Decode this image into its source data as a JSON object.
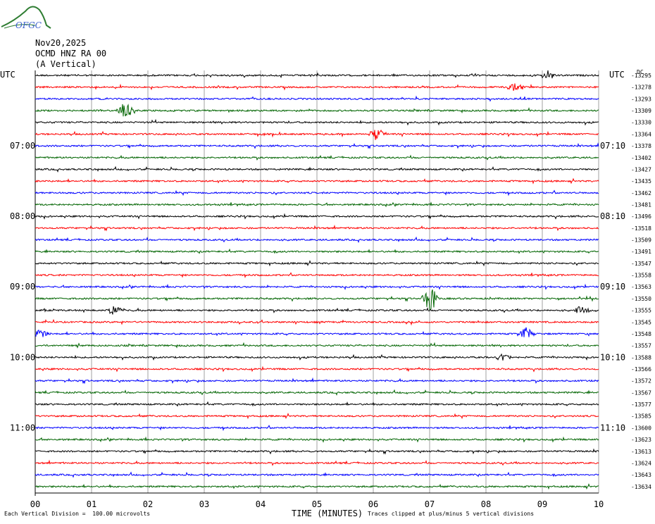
{
  "logo": {
    "text": "OFGC",
    "color": "#2e7d32",
    "text_color": "#3a5fcd"
  },
  "header": {
    "date": "Nov20,2025",
    "station": "OCMD HNZ RA 00",
    "component": "(A Vertical)"
  },
  "chart_data": {
    "type": "line",
    "title": "",
    "left_axis_label": "UTC",
    "right_axis_label": "UTC",
    "right_top_label": "DC",
    "xlabel": "TIME (MINUTES)",
    "x_ticks": [
      "00",
      "01",
      "02",
      "03",
      "04",
      "05",
      "06",
      "07",
      "08",
      "09",
      "10"
    ],
    "xlim": [
      0,
      10
    ],
    "left_hour_labels": [
      {
        "trace": 6,
        "label": "07:00"
      },
      {
        "trace": 12,
        "label": "08:00"
      },
      {
        "trace": 18,
        "label": "09:00"
      },
      {
        "trace": 24,
        "label": "10:00"
      },
      {
        "trace": 30,
        "label": "11:00"
      }
    ],
    "right_hour_labels": [
      {
        "trace": 6,
        "label": "07:10"
      },
      {
        "trace": 12,
        "label": "08:10"
      },
      {
        "trace": 18,
        "label": "09:10"
      },
      {
        "trace": 24,
        "label": "10:10"
      },
      {
        "trace": 30,
        "label": "11:10"
      }
    ],
    "trace_colors": [
      "#000000",
      "#ff0000",
      "#0000ff",
      "#006400"
    ],
    "dc_offsets": [
      "-13295",
      "-13278",
      "-13293",
      "-13309",
      "-13330",
      "-13364",
      "-13378",
      "-13402",
      "-13427",
      "-13435",
      "-13462",
      "-13481",
      "-13496",
      "-13518",
      "-13509",
      "-13491",
      "-13547",
      "-13558",
      "-13563",
      "-13550",
      "-13555",
      "-13545",
      "-13548",
      "-13557",
      "-13588",
      "-13566",
      "-13572",
      "-13567",
      "-13577",
      "-13585",
      "-13600",
      "-13623",
      "-13613",
      "-13624",
      "-13643",
      "-13634"
    ],
    "grid": true,
    "footnote_left": "Each Vertical Division =  100.00 microvolts",
    "footnote_right": "Traces clipped at plus/minus 5 vertical divisions"
  }
}
